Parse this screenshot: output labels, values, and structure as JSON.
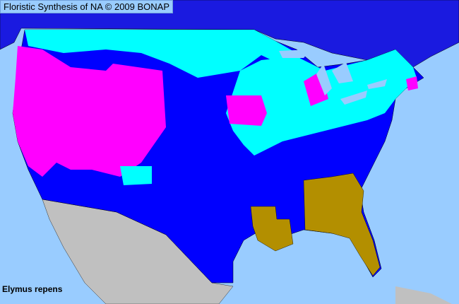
{
  "header": {
    "title": "Floristic Synthesis of NA © 2009 BONAP"
  },
  "map": {
    "species": "Elymus repens",
    "colors": {
      "ocean": "#99ccff",
      "present_native": "#0000ff",
      "county_present": "#00ffff",
      "state_present_introduced": "#ff00ff",
      "state_noxious": "#b38f00",
      "outside_range": "#c0c0c0",
      "canada": "#1a1ae0"
    }
  }
}
